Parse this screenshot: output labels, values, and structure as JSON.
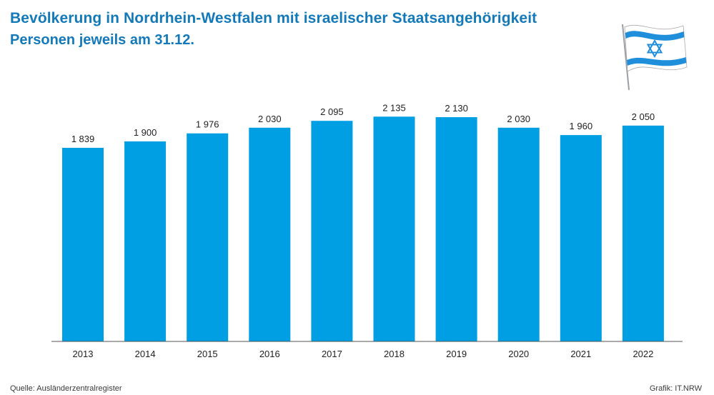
{
  "chart_data": {
    "type": "bar",
    "title": "Bevölkerung in Nordrhein-Westfalen mit israelischer Staatsangehörigkeit",
    "subtitle": "Personen jeweils am 31.12.",
    "categories": [
      "2013",
      "2014",
      "2015",
      "2016",
      "2017",
      "2018",
      "2019",
      "2020",
      "2021",
      "2022"
    ],
    "values": [
      1839,
      1900,
      1976,
      2030,
      2095,
      2135,
      2130,
      2030,
      1960,
      2050
    ],
    "value_labels": [
      "1 839",
      "1 900",
      "1 976",
      "2 030",
      "2 095",
      "2 135",
      "2 130",
      "2 030",
      "1 960",
      "2 050"
    ],
    "xlabel": "",
    "ylabel": "",
    "ylim": [
      0,
      2300
    ],
    "grid": false,
    "legend": "none",
    "bar_color": "#009ee3"
  },
  "source": "Quelle: Ausländerzentralregister",
  "credit": "Grafik: IT.NRW",
  "colors": {
    "title": "#1479b8",
    "flag_blue": "#1f8fdc"
  },
  "icons": {
    "flag": "israel-flag-icon"
  }
}
